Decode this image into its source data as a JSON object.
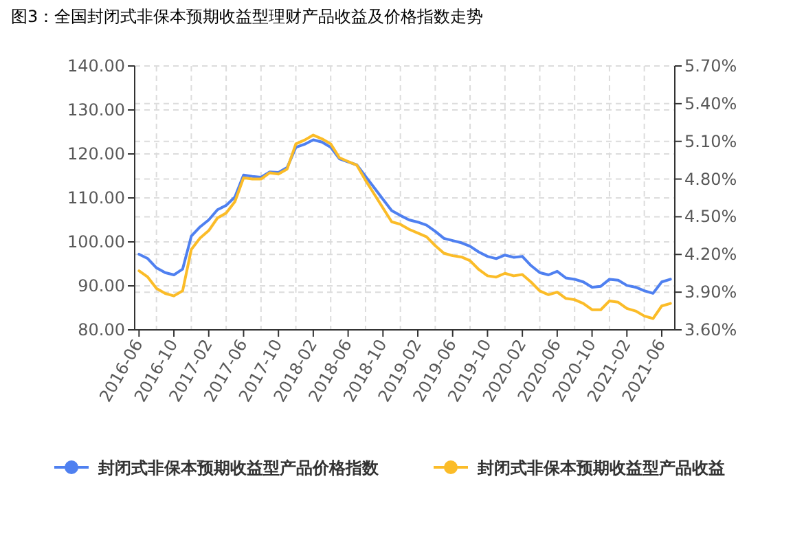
{
  "chart_data": {
    "type": "line",
    "title": "图3：全国封闭式非保本预期收益型理财产品收益及价格指数走势",
    "categories": [
      "2016-06",
      null,
      null,
      null,
      "2016-10",
      null,
      null,
      null,
      "2017-02",
      null,
      null,
      null,
      "2017-06",
      null,
      null,
      null,
      "2017-10",
      null,
      null,
      null,
      "2018-02",
      null,
      null,
      null,
      "2018-06",
      null,
      null,
      null,
      "2018-10",
      null,
      null,
      null,
      "2019-02",
      null,
      null,
      null,
      "2019-06",
      null,
      null,
      null,
      "2019-10",
      null,
      null,
      null,
      "2020-02",
      null,
      null,
      null,
      "2020-06",
      null,
      null,
      null,
      "2020-10",
      null,
      null,
      null,
      "2021-02",
      null,
      null,
      null,
      "2021-06",
      null
    ],
    "series": [
      {
        "name": "封闭式非保本预期收益型产品价格指数",
        "color": "#4f80f0",
        "axis": "y",
        "values": [
          97.2,
          96.2,
          94.1,
          93.0,
          92.5,
          93.8,
          101.3,
          103.4,
          105.0,
          107.3,
          108.3,
          110.2,
          115.2,
          114.9,
          114.7,
          115.9,
          115.8,
          116.9,
          121.5,
          122.2,
          123.2,
          122.7,
          121.5,
          118.9,
          118.2,
          117.5,
          114.9,
          112.3,
          109.7,
          107.1,
          106.0,
          105.0,
          104.5,
          103.8,
          102.4,
          100.8,
          100.3,
          99.8,
          99.0,
          97.7,
          96.7,
          96.2,
          97.0,
          96.5,
          96.7,
          94.6,
          93.0,
          92.5,
          93.3,
          91.8,
          91.5,
          90.9,
          89.7,
          89.9,
          91.5,
          91.3,
          90.1,
          89.7,
          88.9,
          88.3,
          90.9,
          91.5
        ]
      },
      {
        "name": "封闭式非保本预期收益型产品收益",
        "color": "#fbbc28",
        "axis": "y2",
        "values": [
          4.07,
          4.02,
          3.93,
          3.89,
          3.87,
          3.91,
          4.24,
          4.33,
          4.39,
          4.49,
          4.53,
          4.62,
          4.81,
          4.8,
          4.8,
          4.85,
          4.84,
          4.88,
          5.08,
          5.11,
          5.15,
          5.12,
          5.08,
          4.97,
          4.94,
          4.91,
          4.79,
          4.68,
          4.57,
          4.46,
          4.44,
          4.4,
          4.37,
          4.34,
          4.27,
          4.21,
          4.19,
          4.18,
          4.15,
          4.08,
          4.03,
          4.02,
          4.05,
          4.03,
          4.04,
          3.98,
          3.91,
          3.88,
          3.9,
          3.85,
          3.84,
          3.81,
          3.76,
          3.76,
          3.83,
          3.82,
          3.77,
          3.75,
          3.71,
          3.69,
          3.79,
          3.81
        ]
      }
    ],
    "ylim": [
      80,
      140
    ],
    "yticks": [
      {
        "value": 80,
        "label": "80.00"
      },
      {
        "value": 90,
        "label": "90.00"
      },
      {
        "value": 100,
        "label": "100.00"
      },
      {
        "value": 110,
        "label": "110.00"
      },
      {
        "value": 120,
        "label": "120.00"
      },
      {
        "value": 130,
        "label": "130.00"
      },
      {
        "value": 140,
        "label": "140.00"
      }
    ],
    "y2lim": [
      3.6,
      5.7
    ],
    "y2ticks": [
      {
        "value": 3.6,
        "label": "3.60%"
      },
      {
        "value": 3.9,
        "label": "3.90%"
      },
      {
        "value": 4.2,
        "label": "4.20%"
      },
      {
        "value": 4.5,
        "label": "4.50%"
      },
      {
        "value": 4.8,
        "label": "4.80%"
      },
      {
        "value": 5.1,
        "label": "5.10%"
      },
      {
        "value": 5.4,
        "label": "5.40%"
      },
      {
        "value": 5.7,
        "label": "5.70%"
      }
    ],
    "grid": true,
    "legend": "bottom"
  }
}
